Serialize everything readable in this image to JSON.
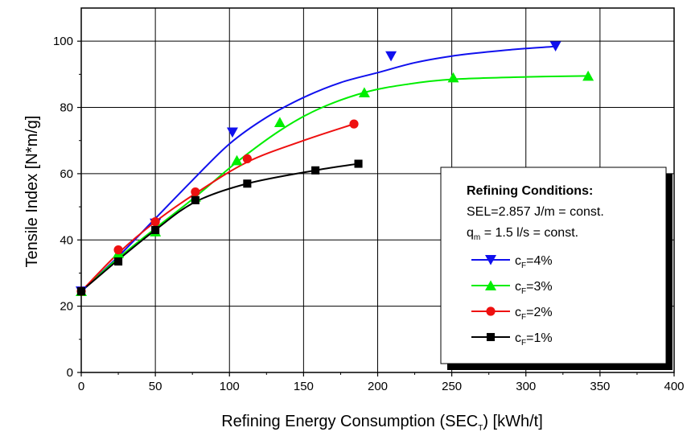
{
  "chart_data": {
    "type": "scatter",
    "xlabel": "Refining Energy Consumption (SEC",
    "xlabel_sub": "T",
    "xlabel_tail": ") [kWh/t]",
    "ylabel": "Tensile Index [N*m/g]",
    "xlim": [
      0,
      400
    ],
    "ylim": [
      0,
      110
    ],
    "x_ticks": [
      "0",
      "50",
      "100",
      "150",
      "200",
      "250",
      "300",
      "350",
      "400"
    ],
    "y_ticks": [
      "0",
      "20",
      "40",
      "60",
      "80",
      "100"
    ],
    "grid": true,
    "legend": {
      "placement": "right",
      "title": "Refining Conditions:",
      "line1": "SEL=2.857 J/m = const.",
      "line2_prefix": "q",
      "line2_sub": "m",
      "line2_suffix": " = 1.5 l/s = const."
    },
    "series": [
      {
        "name_prefix": "c",
        "name_sub": "F",
        "name_suffix": "=4%",
        "color": "#1010ee",
        "marker": "triangle-down",
        "x": [
          0,
          50,
          102,
          209,
          320
        ],
        "y": [
          24.5,
          45,
          72.5,
          95.5,
          98.5
        ],
        "fit_x": [
          0,
          25,
          50,
          75,
          100,
          125,
          150,
          175,
          200,
          225,
          250,
          275,
          300,
          320
        ],
        "fit_y": [
          24.5,
          35,
          46.5,
          58,
          69,
          77,
          83,
          87.5,
          90.5,
          93.5,
          95.5,
          96.8,
          97.8,
          98.4
        ]
      },
      {
        "name_prefix": "c",
        "name_sub": "F",
        "name_suffix": "=3%",
        "color": "#00ee00",
        "marker": "triangle-up",
        "x": [
          0,
          25,
          50,
          77,
          105,
          134,
          191,
          251,
          342
        ],
        "y": [
          24.5,
          36,
          42.5,
          53,
          64,
          75.5,
          84.5,
          89,
          89.5
        ],
        "fit_x": [
          0,
          25,
          50,
          77,
          105,
          134,
          160,
          191,
          220,
          251,
          300,
          342
        ],
        "fit_y": [
          24.5,
          34.5,
          43.5,
          53,
          63.5,
          73,
          79.5,
          84.5,
          87,
          88.5,
          89.2,
          89.5
        ]
      },
      {
        "name_prefix": "c",
        "name_sub": "F",
        "name_suffix": "=2%",
        "color": "#ee1010",
        "marker": "circle",
        "x": [
          0,
          25,
          50,
          77,
          112,
          184
        ],
        "y": [
          24.5,
          37,
          45.5,
          54.5,
          64.5,
          75
        ],
        "fit_x": [
          0,
          25,
          50,
          77,
          112,
          150,
          184
        ],
        "fit_y": [
          24.5,
          36,
          45.5,
          54,
          63.5,
          70,
          75
        ]
      },
      {
        "name_prefix": "c",
        "name_sub": "F",
        "name_suffix": "=1%",
        "color": "#000000",
        "marker": "square",
        "x": [
          0,
          25,
          50,
          77,
          112,
          158,
          187
        ],
        "y": [
          24.5,
          33.5,
          43,
          52,
          57,
          61,
          63
        ],
        "fit_x": [
          0,
          25,
          50,
          77,
          112,
          158,
          187
        ],
        "fit_y": [
          24.5,
          34,
          43,
          51.5,
          57,
          61,
          63
        ]
      }
    ]
  }
}
